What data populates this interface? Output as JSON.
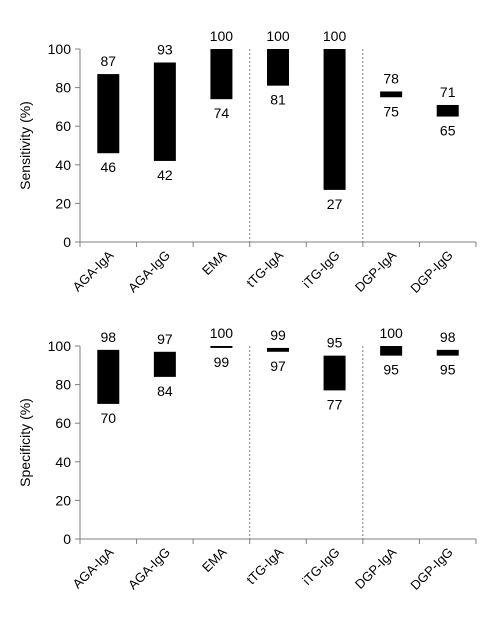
{
  "chart_data": [
    {
      "type": "bar",
      "subtype": "floating-range",
      "categories": [
        "AGA-IgA",
        "AGA-IgG",
        "EMA",
        "tTG-IgA",
        "iTG-IgG",
        "DGP-IgA",
        "DGP-IgG"
      ],
      "low": [
        46,
        42,
        74,
        81,
        27,
        75,
        65
      ],
      "high": [
        87,
        93,
        100,
        100,
        100,
        78,
        71
      ],
      "low_labels": [
        "46",
        "42",
        "74",
        "81",
        "27",
        "75",
        "65"
      ],
      "high_labels": [
        "87",
        "93",
        "100",
        "100",
        "100",
        "78",
        "71"
      ],
      "ylabel": "Sensitivity (%)",
      "ylim": [
        0,
        100
      ],
      "yticks": [
        "0",
        "20",
        "40",
        "60",
        "80",
        "100"
      ],
      "separators_after": [
        2,
        4
      ],
      "bar_color": "#000000"
    },
    {
      "type": "bar",
      "subtype": "floating-range",
      "categories": [
        "AGA-IgA",
        "AGA-IgG",
        "EMA",
        "tTG-IgA",
        "iTG-IgG",
        "DGP-IgA",
        "DGP-IgG"
      ],
      "low": [
        70,
        84,
        99,
        97,
        77,
        95,
        95
      ],
      "high": [
        98,
        97,
        100,
        99,
        95,
        100,
        98
      ],
      "low_labels": [
        "70",
        "84",
        "99",
        "97",
        "77",
        "95",
        "95"
      ],
      "high_labels": [
        "98",
        "97",
        "100",
        "99",
        "95",
        "100",
        "98"
      ],
      "ylabel": "Specificity (%)",
      "ylim": [
        0,
        100
      ],
      "yticks": [
        "0",
        "20",
        "40",
        "60",
        "80",
        "100"
      ],
      "separators_after": [
        2,
        4
      ],
      "bar_color": "#000000"
    }
  ]
}
